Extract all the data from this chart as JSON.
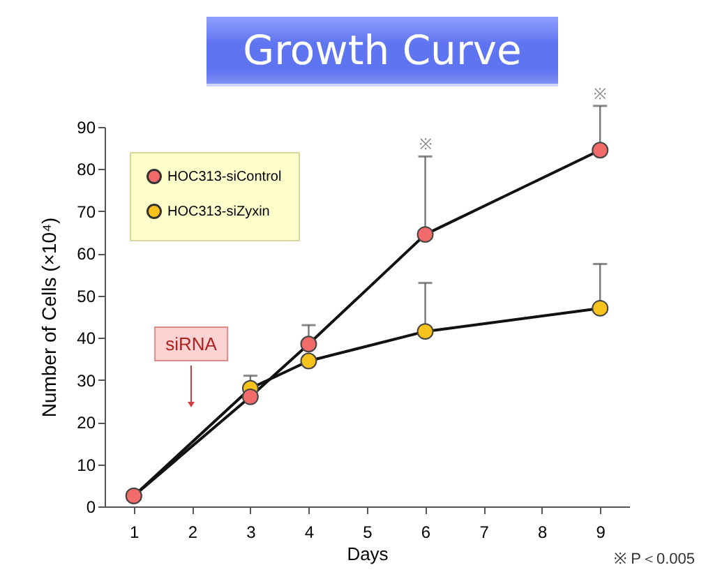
{
  "chart_data": {
    "type": "line",
    "title": "Growth Curve",
    "xlabel": "Days",
    "ylabel": "Number of Cells (×10⁴)",
    "x": [
      1,
      3,
      4,
      6,
      9
    ],
    "xlim": [
      0.5,
      9.5
    ],
    "xticks": [
      1,
      2,
      3,
      4,
      5,
      6,
      7,
      8,
      9
    ],
    "ylim": [
      0,
      90
    ],
    "yticks": [
      0,
      10,
      20,
      30,
      40,
      50,
      60,
      70,
      80,
      90
    ],
    "series": [
      {
        "name": "HOC313-siControl",
        "color": "#f26b6b",
        "values": [
          2.5,
          26,
          38.5,
          64.5,
          84.5
        ],
        "errors": [
          null,
          null,
          [
            38.5,
            43
          ],
          [
            64.5,
            83
          ],
          [
            84.5,
            95
          ]
        ]
      },
      {
        "name": "HOC313-siZyxin",
        "color": "#f7c21b",
        "values": [
          2.5,
          28,
          34.5,
          41.5,
          47
        ],
        "errors": [
          null,
          [
            28,
            31
          ],
          null,
          [
            41.5,
            53
          ],
          [
            47,
            57.5
          ]
        ]
      }
    ],
    "annotations": [
      "siRNA",
      {
        "text": "※",
        "x": 6,
        "y": 83
      },
      {
        "text": "※",
        "x": 9,
        "y": 95
      },
      "※ P＜0.005"
    ],
    "marker": "circle",
    "line_style": "solid",
    "grid": false,
    "legend": "top left"
  }
}
